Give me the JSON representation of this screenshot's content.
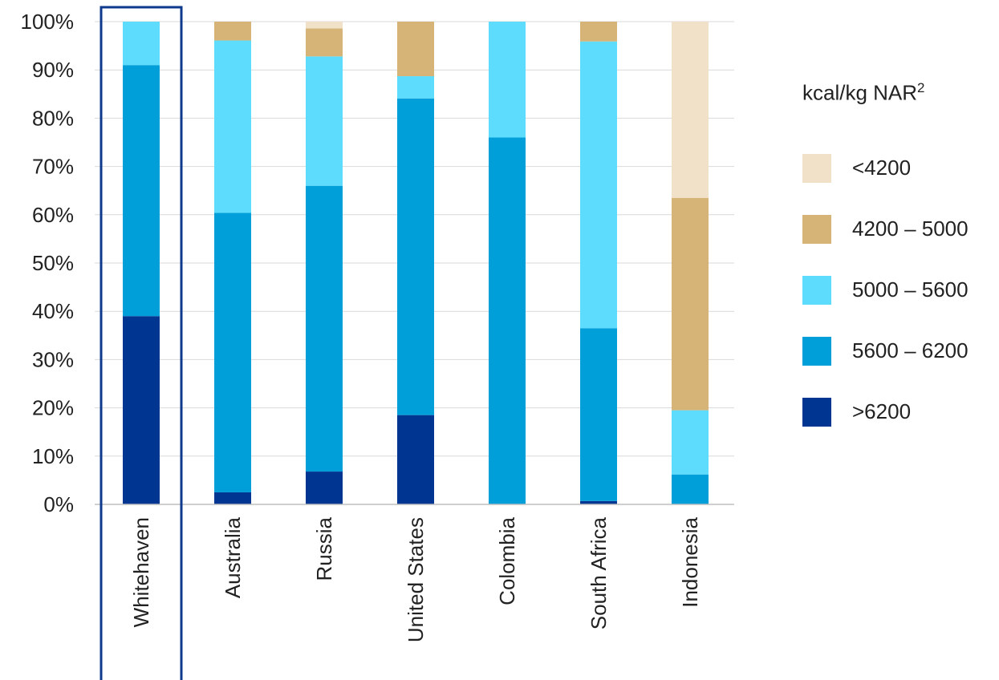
{
  "chart_data": {
    "type": "bar",
    "stacked": true,
    "categories": [
      "Whitehaven",
      "Australia",
      "Russia",
      "United States",
      "Colombia",
      "South Africa",
      "Indonesia"
    ],
    "highlighted_category": "Whitehaven",
    "ylim": [
      0,
      100
    ],
    "yticks": [
      "0%",
      "10%",
      "20%",
      "30%",
      "40%",
      "50%",
      "60%",
      "70%",
      "80%",
      "90%",
      "100%"
    ],
    "grid": true,
    "legend_position": "right",
    "legend_title": "kcal/kg NAR",
    "legend_title_superscript": "2",
    "series": [
      {
        "name": ">6200",
        "color": "#003591",
        "values": [
          39,
          2.5,
          6.8,
          18.5,
          0,
          0.7,
          0
        ]
      },
      {
        "name": "5600 – 6200",
        "color": "#009fda",
        "values": [
          52,
          57.9,
          59.2,
          65.6,
          76,
          35.8,
          6.2
        ]
      },
      {
        "name": "5000 – 5600",
        "color": "#5ddcfd",
        "values": [
          9,
          35.7,
          26.8,
          4.6,
          24,
          59.4,
          13.3
        ]
      },
      {
        "name": "4200 – 5000",
        "color": "#d6b478",
        "values": [
          0,
          3.9,
          5.8,
          11.3,
          0,
          4.1,
          44
        ]
      },
      {
        "name": "<4200",
        "color": "#f1e1c8",
        "values": [
          0,
          0,
          1.4,
          0,
          0,
          0,
          36.5
        ]
      }
    ]
  }
}
